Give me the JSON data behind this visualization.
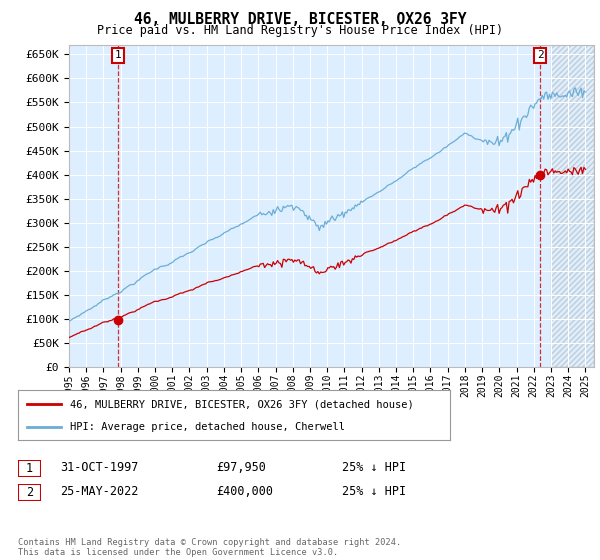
{
  "title": "46, MULBERRY DRIVE, BICESTER, OX26 3FY",
  "subtitle": "Price paid vs. HM Land Registry's House Price Index (HPI)",
  "ylim": [
    0,
    670000
  ],
  "yticks": [
    0,
    50000,
    100000,
    150000,
    200000,
    250000,
    300000,
    350000,
    400000,
    450000,
    500000,
    550000,
    600000,
    650000
  ],
  "x_start_year": 1995,
  "x_end_year": 2025,
  "sale1_price": 97950,
  "sale1_label": "1",
  "sale2_price": 400000,
  "sale2_label": "2",
  "sale1_x": 1997.83,
  "sale2_x": 2022.38,
  "hpi_color": "#6baed6",
  "price_color": "#cc0000",
  "background_color": "#ddeeff",
  "legend_label1": "46, MULBERRY DRIVE, BICESTER, OX26 3FY (detached house)",
  "legend_label2": "HPI: Average price, detached house, Cherwell",
  "footer": "Contains HM Land Registry data © Crown copyright and database right 2024.\nThis data is licensed under the Open Government Licence v3.0.",
  "info_row1": [
    "1",
    "31-OCT-1997",
    "£97,950",
    "25% ↓ HPI"
  ],
  "info_row2": [
    "2",
    "25-MAY-2022",
    "£400,000",
    "25% ↓ HPI"
  ]
}
